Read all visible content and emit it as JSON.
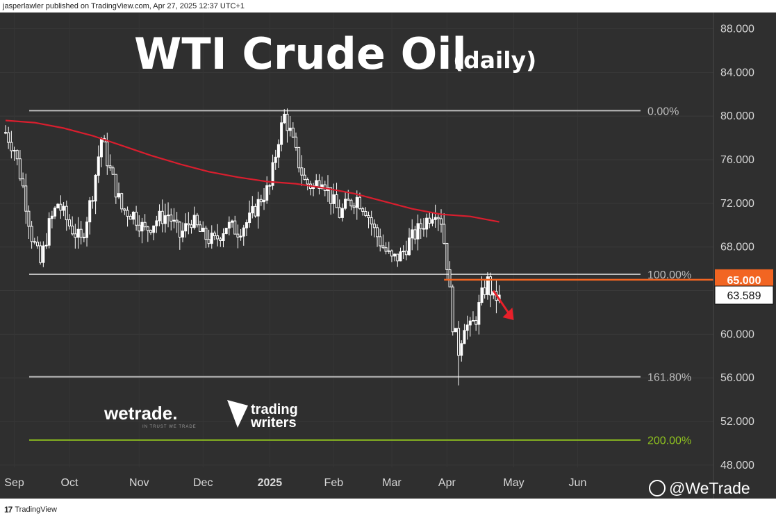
{
  "header": {
    "published_by": "jasperlawler published on TradingView.com, Apr 27, 2025 12:37 UTC+1"
  },
  "footer": {
    "brand": "TradingView",
    "brand_mark": "17"
  },
  "branding": {
    "wetrade": "wetrade.",
    "wetrade_tagline": "IN TRUST WE TRADE",
    "trading_writers_line1": "trading",
    "trading_writers_line2": "writers",
    "watermark": "@WeTrade"
  },
  "colors": {
    "background": "#2f2f2f",
    "candle_up": "#ffffff",
    "candle_down": "#ffffff",
    "ma_line": "#d91e2e",
    "fib_line": "#bdbdbd",
    "ext_line": "#8fc21f",
    "resistance": "#f26522",
    "arrow": "#e8202a"
  },
  "chart_data": {
    "type": "candlestick",
    "title": "WTI Crude Oil",
    "subtitle": "(daily)",
    "y_axis": {
      "ticks": [
        48,
        52,
        56,
        60,
        64,
        68,
        72,
        76,
        80,
        84,
        88
      ],
      "tick_labels": [
        "48.000",
        "52.000",
        "56.000",
        "60.000",
        "64.000",
        "68.000",
        "72.000",
        "76.000",
        "80.000",
        "84.000",
        "88.000"
      ],
      "range": [
        47.8,
        89.5
      ],
      "side": "right"
    },
    "x_axis": {
      "tick_labels": [
        "Sep",
        "Oct",
        "Nov",
        "Dec",
        "2025",
        "Feb",
        "Mar",
        "Apr",
        "May",
        "Jun"
      ],
      "tick_index": [
        3,
        22,
        46,
        68,
        91,
        113,
        133,
        152,
        175,
        197
      ]
    },
    "price_labels": {
      "resistance": "65.000",
      "last": "63.589"
    },
    "resistance_level": 65.0,
    "last_price": 63.589,
    "fib_levels": [
      {
        "label": "0.00%",
        "value": 80.5
      },
      {
        "label": "100.00%",
        "value": 65.5
      },
      {
        "label": "161.80%",
        "value": 56.1
      },
      {
        "label": "200.00%",
        "value": 50.3
      }
    ],
    "moving_average": {
      "x": [
        0,
        10,
        20,
        30,
        40,
        50,
        60,
        70,
        80,
        90,
        100,
        110,
        120,
        130,
        140,
        150,
        160,
        170
      ],
      "y": [
        79.6,
        79.4,
        78.9,
        78.2,
        77.3,
        76.4,
        75.6,
        74.9,
        74.4,
        74.0,
        73.8,
        73.4,
        72.9,
        72.2,
        71.5,
        71.0,
        70.8,
        70.3
      ]
    },
    "price_path": {
      "x": [
        0,
        3,
        6,
        9,
        12,
        15,
        18,
        22,
        26,
        30,
        33,
        36,
        40,
        44,
        48,
        52,
        56,
        60,
        64,
        68,
        72,
        76,
        80,
        84,
        88,
        91,
        94,
        96,
        98,
        100,
        103,
        106,
        109,
        112,
        115,
        118,
        121,
        124,
        127,
        130,
        133,
        136,
        139,
        142,
        145,
        148,
        150,
        152,
        154,
        156,
        158,
        160,
        162,
        164,
        166,
        168,
        170
      ],
      "y": [
        78.5,
        77.0,
        73.5,
        69.0,
        66.5,
        70.0,
        72.0,
        70.0,
        68.5,
        73.0,
        78.0,
        75.0,
        71.5,
        71.0,
        69.5,
        70.5,
        71.0,
        69.0,
        70.5,
        69.0,
        68.5,
        70.0,
        69.5,
        70.5,
        72.5,
        73.5,
        78.0,
        80.0,
        78.5,
        76.5,
        74.0,
        73.5,
        74.5,
        72.5,
        71.0,
        72.0,
        72.5,
        71.5,
        69.5,
        68.0,
        66.8,
        67.2,
        68.5,
        69.5,
        70.5,
        71.5,
        70.5,
        66.5,
        61.0,
        58.5,
        61.0,
        60.5,
        61.5,
        63.5,
        64.8,
        63.2,
        63.6
      ]
    },
    "annotations": [
      {
        "type": "arrow",
        "direction": "down-right",
        "from_x": 168,
        "from_y": 64.0,
        "to_x": 175,
        "to_y": 61.3
      }
    ]
  }
}
